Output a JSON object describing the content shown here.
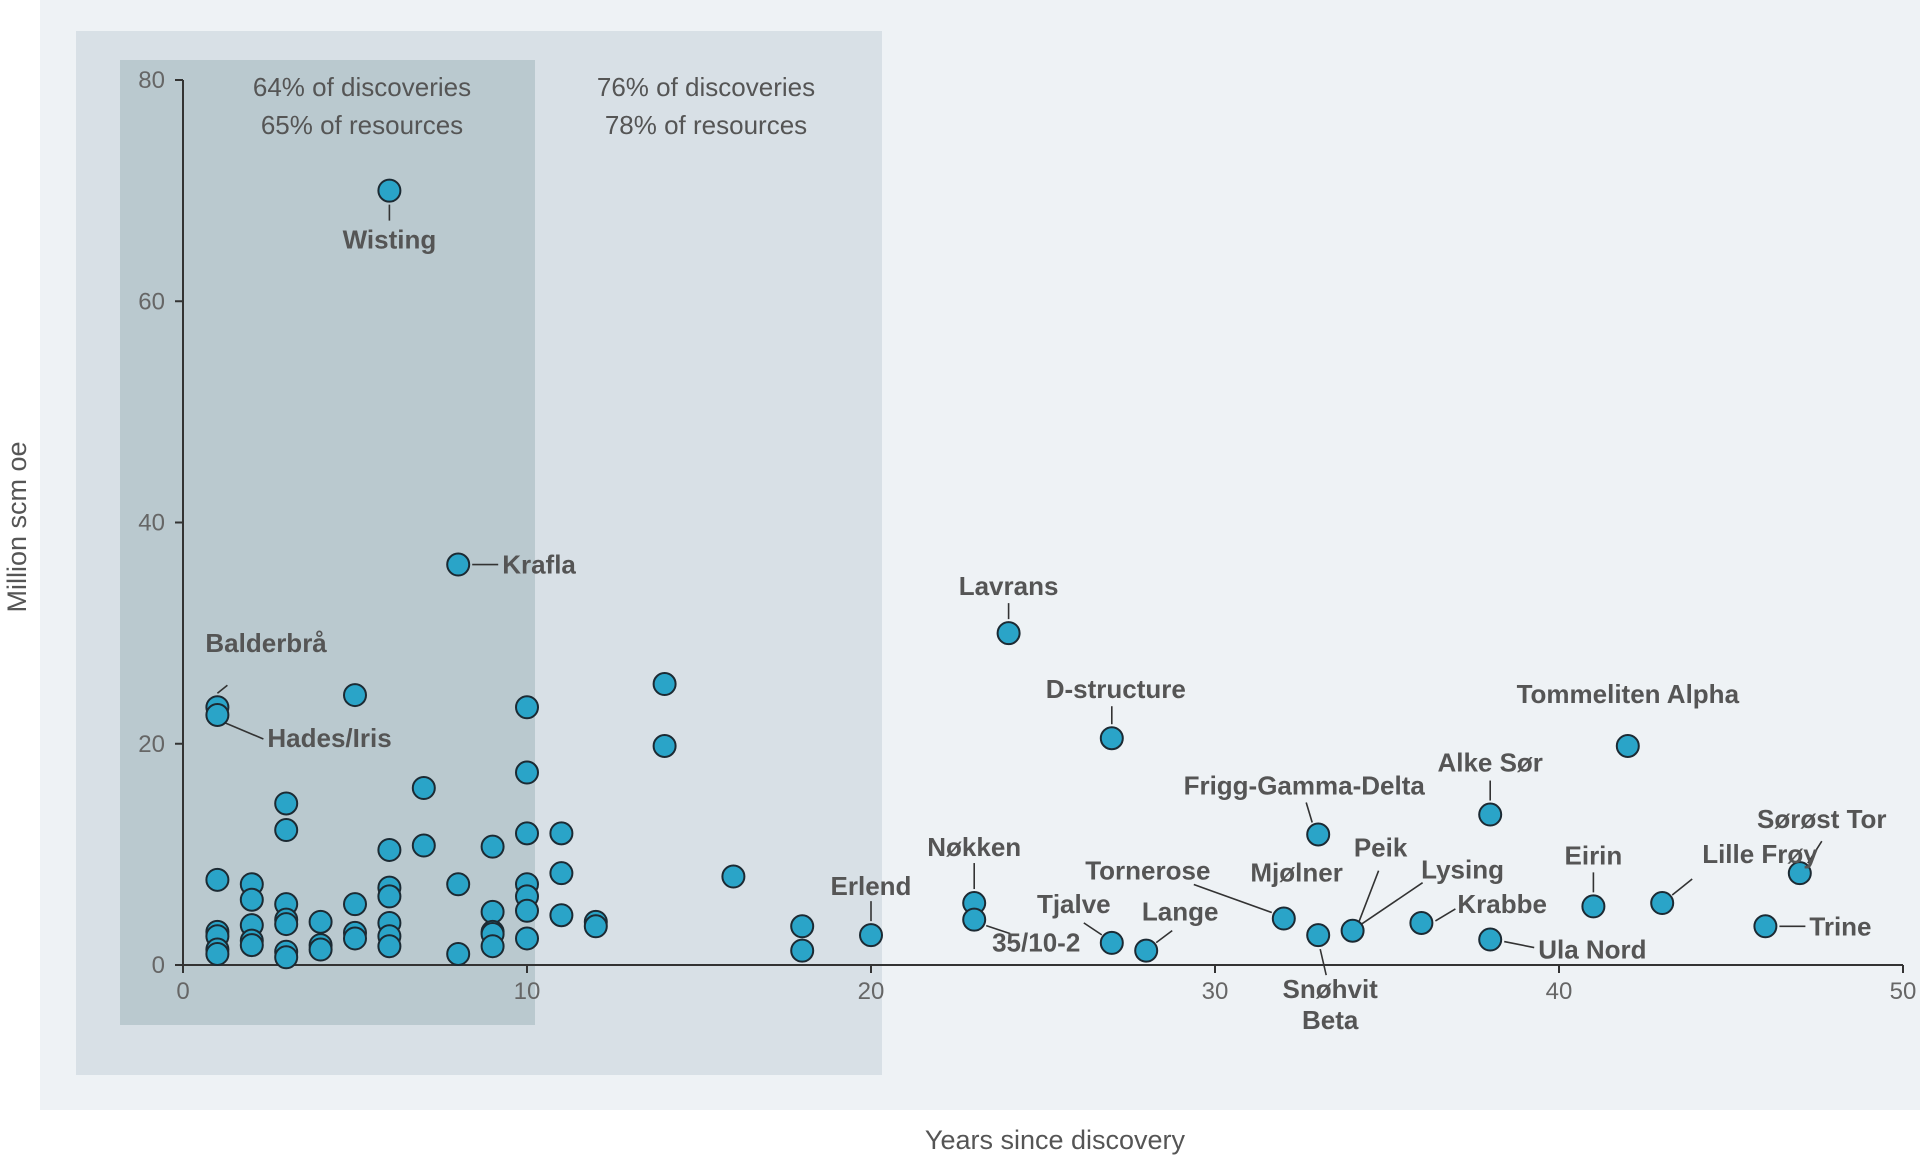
{
  "chart_data": {
    "type": "scatter",
    "title": "",
    "xlabel": "Years since discovery",
    "ylabel": "Million scm oe",
    "xlim": [
      0,
      50
    ],
    "ylim": [
      0,
      80
    ],
    "xticks": [
      0,
      10,
      20,
      30,
      40,
      50
    ],
    "yticks": [
      0,
      20,
      40,
      60,
      80
    ],
    "grid": false,
    "colors": {
      "point": "#2aa4c8",
      "point_stroke": "#1c2a33",
      "region_outer": "#d8e0e6",
      "region_inner": "#bac9cf",
      "background": "#eef2f5",
      "axis": "#333333",
      "text": "#555555"
    },
    "regions": [
      {
        "name": "outer",
        "x_range": [
          0,
          20
        ],
        "lines": [
          "76% of discoveries",
          "78% of resources"
        ]
      },
      {
        "name": "inner",
        "x_range": [
          0,
          10
        ],
        "lines": [
          "64% of discoveries",
          "65% of resources"
        ]
      }
    ],
    "points": [
      {
        "x": 1,
        "y": 23.3,
        "label": "Balderbrå"
      },
      {
        "x": 1,
        "y": 22.6,
        "label": "Hades/Iris"
      },
      {
        "x": 1,
        "y": 7.7
      },
      {
        "x": 1,
        "y": 3.0
      },
      {
        "x": 1,
        "y": 2.6
      },
      {
        "x": 1,
        "y": 1.4
      },
      {
        "x": 1,
        "y": 1.0
      },
      {
        "x": 2,
        "y": 7.3
      },
      {
        "x": 2,
        "y": 5.9
      },
      {
        "x": 2,
        "y": 3.6
      },
      {
        "x": 2,
        "y": 2.2
      },
      {
        "x": 2,
        "y": 1.8
      },
      {
        "x": 3,
        "y": 14.6
      },
      {
        "x": 3,
        "y": 12.2
      },
      {
        "x": 3,
        "y": 5.5
      },
      {
        "x": 3,
        "y": 4.1
      },
      {
        "x": 3,
        "y": 3.7
      },
      {
        "x": 3,
        "y": 1.2
      },
      {
        "x": 3,
        "y": 0.7
      },
      {
        "x": 4,
        "y": 3.9
      },
      {
        "x": 4,
        "y": 1.8
      },
      {
        "x": 4,
        "y": 1.4
      },
      {
        "x": 5,
        "y": 24.4
      },
      {
        "x": 5,
        "y": 5.5
      },
      {
        "x": 5,
        "y": 2.9
      },
      {
        "x": 5,
        "y": 2.4
      },
      {
        "x": 6,
        "y": 70,
        "label": "Wisting"
      },
      {
        "x": 6,
        "y": 10.4
      },
      {
        "x": 6,
        "y": 7.0
      },
      {
        "x": 6,
        "y": 6.2
      },
      {
        "x": 6,
        "y": 3.8
      },
      {
        "x": 6,
        "y": 2.6
      },
      {
        "x": 6,
        "y": 1.7
      },
      {
        "x": 7,
        "y": 16.0
      },
      {
        "x": 7,
        "y": 10.8
      },
      {
        "x": 8,
        "y": 36.2,
        "label": "Krafla"
      },
      {
        "x": 8,
        "y": 7.3
      },
      {
        "x": 8,
        "y": 1.0
      },
      {
        "x": 9,
        "y": 10.7
      },
      {
        "x": 9,
        "y": 4.8
      },
      {
        "x": 9,
        "y": 3.0
      },
      {
        "x": 9,
        "y": 2.8
      },
      {
        "x": 9,
        "y": 1.7
      },
      {
        "x": 10,
        "y": 23.3
      },
      {
        "x": 10,
        "y": 17.4
      },
      {
        "x": 10,
        "y": 11.9
      },
      {
        "x": 10,
        "y": 7.3
      },
      {
        "x": 10,
        "y": 6.2
      },
      {
        "x": 10,
        "y": 4.9
      },
      {
        "x": 10,
        "y": 2.4
      },
      {
        "x": 11,
        "y": 11.9
      },
      {
        "x": 11,
        "y": 8.3
      },
      {
        "x": 11,
        "y": 4.5
      },
      {
        "x": 12,
        "y": 3.9
      },
      {
        "x": 12,
        "y": 3.5
      },
      {
        "x": 14,
        "y": 25.4
      },
      {
        "x": 14,
        "y": 19.8
      },
      {
        "x": 16,
        "y": 8.0
      },
      {
        "x": 18,
        "y": 3.5
      },
      {
        "x": 18,
        "y": 1.3
      },
      {
        "x": 20,
        "y": 2.7,
        "label": "Erlend"
      },
      {
        "x": 23,
        "y": 5.6,
        "label": "Nøkken"
      },
      {
        "x": 23,
        "y": 4.1,
        "label": "35/10-2"
      },
      {
        "x": 24,
        "y": 30.0,
        "label": "Lavrans"
      },
      {
        "x": 27,
        "y": 20.5,
        "label": "D-structure"
      },
      {
        "x": 27,
        "y": 2.0,
        "label": "Tjalve"
      },
      {
        "x": 28,
        "y": 1.3,
        "label": "Lange"
      },
      {
        "x": 32,
        "y": 4.2,
        "label": "Tornerose"
      },
      {
        "x": 33,
        "y": 11.8,
        "label": "Frigg-Gamma-Delta"
      },
      {
        "x": 33,
        "y": 2.7,
        "label": "Snøhvit Beta"
      },
      {
        "x": 34,
        "y": 3.1,
        "label": "Mjølner"
      },
      {
        "x": 36,
        "y": 3.8,
        "label": "Krabbe"
      },
      {
        "x": 38,
        "y": 13.6,
        "label": "Alke Sør"
      },
      {
        "x": 38,
        "y": 2.3,
        "label": "Ula Nord"
      },
      {
        "x": 41,
        "y": 5.3,
        "label": "Eirin"
      },
      {
        "x": 42,
        "y": 19.8,
        "label": "Tommeliten Alpha"
      },
      {
        "x": 43,
        "y": 5.6,
        "label": "Lille Frøy"
      },
      {
        "x": 46,
        "y": 3.5,
        "label": "Trine"
      },
      {
        "x": 47,
        "y": 8.3,
        "label": "Sørøst Tor"
      }
    ],
    "extra_labels": [
      {
        "text": "Peik",
        "x": 34,
        "y": 3.1
      },
      {
        "text": "Lysing",
        "x": 34,
        "y": 3.1
      }
    ]
  }
}
